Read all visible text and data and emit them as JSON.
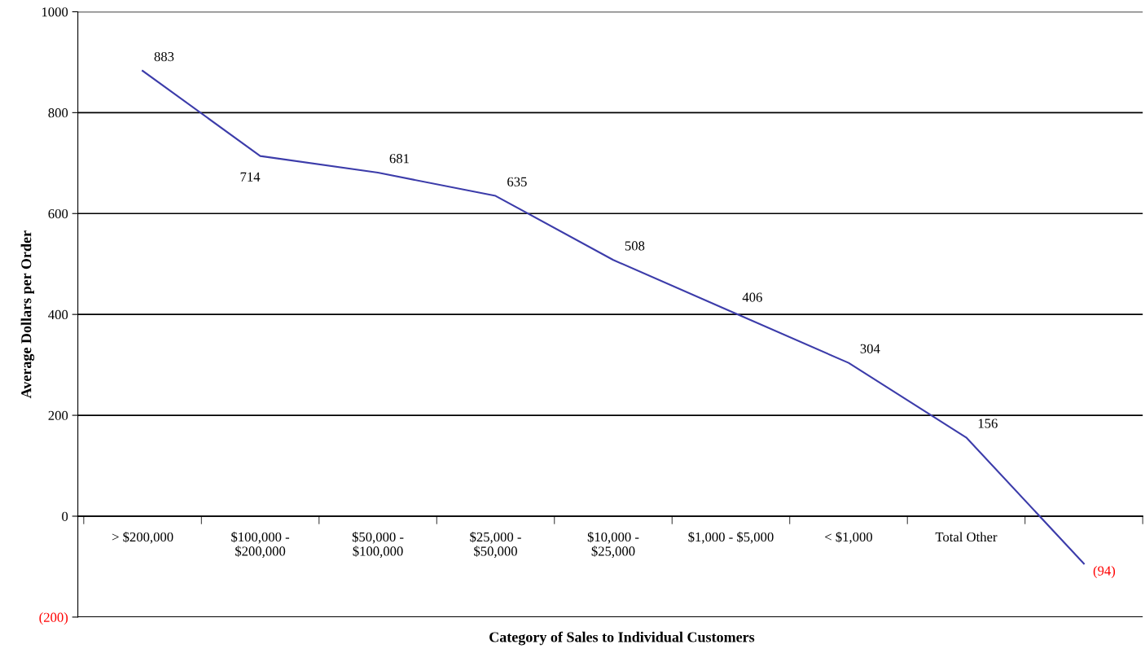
{
  "chart_data": {
    "type": "line",
    "xlabel": "Category of Sales to Individual Customers",
    "ylabel": "Average Dollars per Order",
    "categories": [
      "> $200,000",
      "$100,000 -\n$200,000",
      "$50,000 -\n$100,000",
      "$25,000 -\n$50,000",
      "$10,000 -\n$25,000",
      "$1,000 - $5,000",
      "< $1,000",
      "Total Other",
      null
    ],
    "series": [
      {
        "color": "#3c3caa",
        "values": [
          883,
          714,
          681,
          635,
          508,
          406,
          304,
          156,
          -94
        ],
        "value_labels": [
          "883",
          "714",
          "681",
          "635",
          "508",
          "406",
          "304",
          "156",
          "(94)"
        ]
      }
    ],
    "ylim": [
      -200,
      1000
    ],
    "yticks": [
      {
        "value": -200,
        "label": "(200)"
      },
      0,
      200,
      400,
      600,
      800,
      1000
    ],
    "grid": "y",
    "marker": "none",
    "line_style": "solid",
    "legend": false
  }
}
